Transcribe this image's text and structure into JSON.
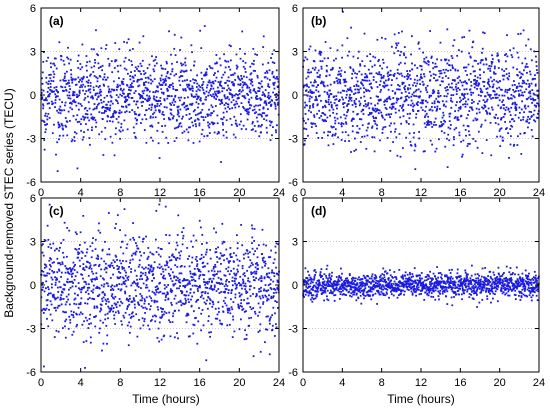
{
  "figure": {
    "ylabel": "Background-removed STEC series  (TECU)",
    "xlabel": "Time (hours)"
  },
  "chart_data": [
    {
      "type": "scatter",
      "panel": "(a)",
      "color": "#1a1adf",
      "xlim": [
        0,
        24
      ],
      "ylim": [
        -6,
        6
      ],
      "xticks": [
        "0",
        "4",
        "8",
        "12",
        "16",
        "20",
        "24"
      ],
      "yticks": [
        "-6",
        "-3",
        "0",
        "3",
        "6"
      ],
      "grid": "horizontal dotted at y=-3 and y=3",
      "noise_std_tecu": 1.5,
      "points_approx": 1400
    },
    {
      "type": "scatter",
      "panel": "(b)",
      "color": "#1a1adf",
      "xlim": [
        0,
        24
      ],
      "ylim": [
        -6,
        6
      ],
      "xticks": [
        "0",
        "4",
        "8",
        "12",
        "16",
        "20",
        "24"
      ],
      "yticks": [
        "-6",
        "-3",
        "0",
        "3",
        "6"
      ],
      "grid": "horizontal dotted at y=-3 and y=3",
      "noise_std_tecu": 1.7,
      "points_approx": 1400
    },
    {
      "type": "scatter",
      "panel": "(c)",
      "color": "#1a1adf",
      "xlim": [
        0,
        24
      ],
      "ylim": [
        -6,
        6
      ],
      "xticks": [
        "0",
        "4",
        "8",
        "12",
        "16",
        "20",
        "24"
      ],
      "yticks": [
        "-6",
        "-3",
        "0",
        "3",
        "6"
      ],
      "grid": "horizontal dotted at y=-3 and y=3",
      "noise_std_tecu": 1.8,
      "points_approx": 1400
    },
    {
      "type": "scatter",
      "panel": "(d)",
      "color": "#1a1adf",
      "xlim": [
        0,
        24
      ],
      "ylim": [
        -6,
        6
      ],
      "xticks": [
        "0",
        "4",
        "8",
        "12",
        "16",
        "20",
        "24"
      ],
      "yticks": [
        "-6",
        "-3",
        "0",
        "3",
        "6"
      ],
      "grid": "horizontal dotted at y=-3 and y=3",
      "noise_std_tecu": 0.45,
      "points_approx": 1400
    }
  ]
}
